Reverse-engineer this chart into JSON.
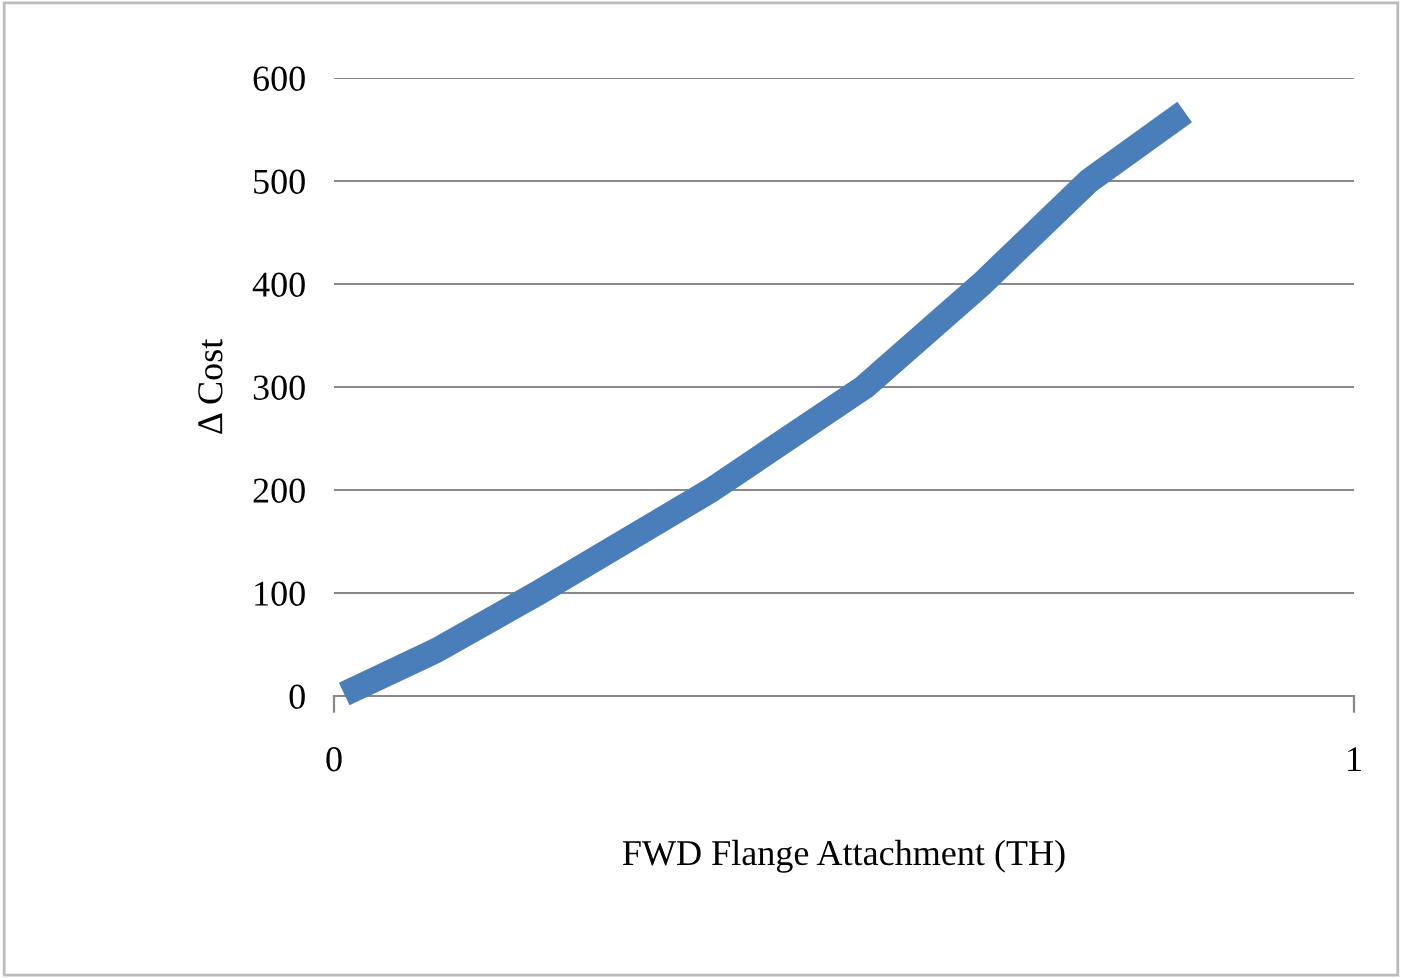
{
  "chart_data": {
    "type": "line",
    "xlabel": "FWD Flange Attachment (TH)",
    "ylabel": "Δ Cost",
    "series": [
      {
        "color": "#4a7ebb",
        "x": [
          0.01,
          0.1,
          0.2,
          0.37,
          0.52,
          0.635,
          0.74,
          0.834
        ],
        "values": [
          2,
          44,
          100,
          200,
          300,
          400,
          500,
          567
        ]
      }
    ],
    "xlim": [
      0,
      1
    ],
    "xticks": [
      0,
      1
    ],
    "ylim": [
      0,
      600
    ],
    "yticks": [
      0,
      100,
      200,
      300,
      400,
      500,
      600
    ],
    "grid": "y",
    "legend": false,
    "line_style": "solid",
    "marker": "none"
  }
}
